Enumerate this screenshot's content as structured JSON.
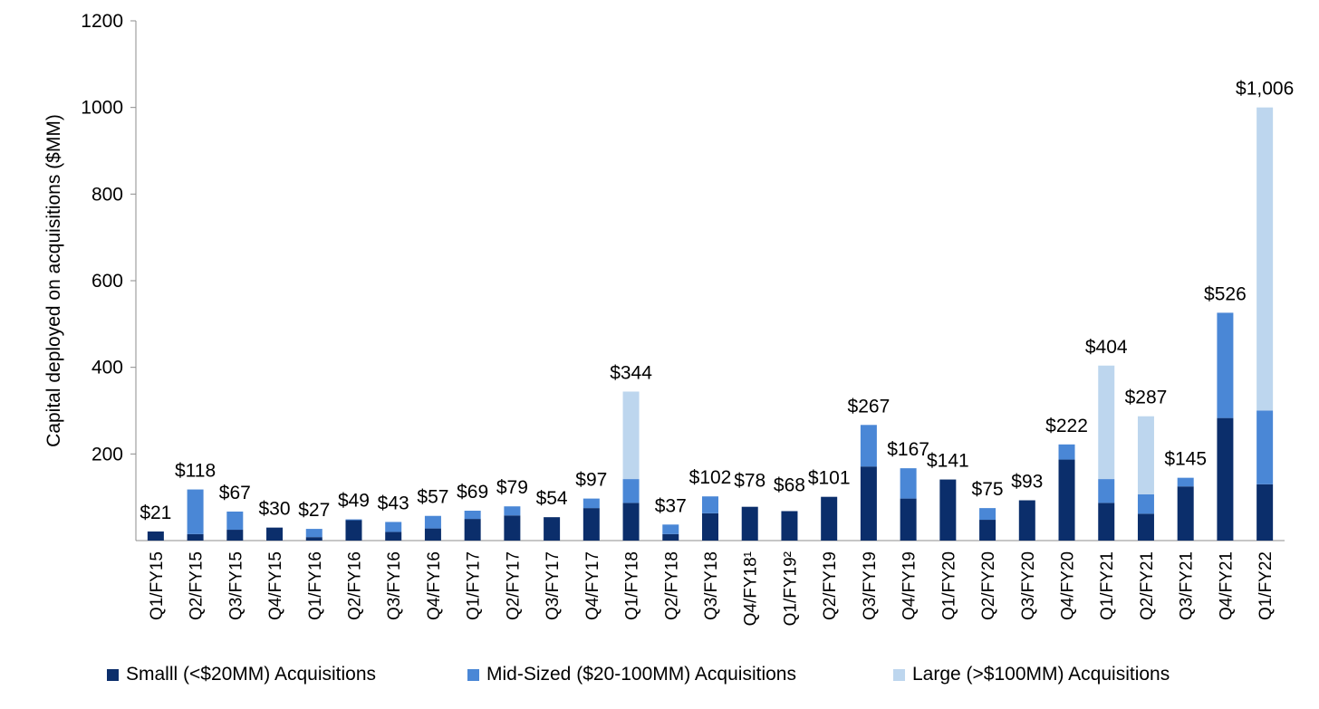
{
  "chart_data": {
    "type": "stacked-bar",
    "ylabel": "Capital deployed on acquisitions ($MM)",
    "ylim": [
      0,
      1200
    ],
    "yticks": [
      200,
      400,
      600,
      800,
      1000,
      1200
    ],
    "legend_position": "bottom",
    "categories": [
      "Q1/FY15",
      "Q2/FY15",
      "Q3/FY15",
      "Q4/FY15",
      "Q1/FY16",
      "Q2/FY16",
      "Q3/FY16",
      "Q4/FY16",
      "Q1/FY17",
      "Q2/FY17",
      "Q3/FY17",
      "Q4/FY17",
      "Q1/FY18",
      "Q2/FY18",
      "Q3/FY18",
      "Q4/FY18¹",
      "Q1/FY19²",
      "Q2/FY19",
      "Q3/FY19",
      "Q4/FY19",
      "Q1/FY20",
      "Q2/FY20",
      "Q3/FY20",
      "Q4/FY20",
      "Q1/FY21",
      "Q2/FY21",
      "Q3/FY21",
      "Q4/FY21",
      "Q1/FY22"
    ],
    "series": [
      {
        "name": "Smalll (<$20MM) Acquisitions",
        "color": "#0b2e6b",
        "values": [
          21,
          15,
          25,
          30,
          8,
          47,
          20,
          28,
          50,
          58,
          54,
          75,
          87,
          15,
          63,
          78,
          68,
          101,
          171,
          97,
          141,
          48,
          93,
          187,
          87,
          62,
          125,
          283,
          130
        ]
      },
      {
        "name": "Mid-Sized ($20-100MM) Acquisitions",
        "color": "#4a87d6",
        "values": [
          0,
          103,
          42,
          0,
          19,
          2,
          23,
          29,
          19,
          21,
          0,
          22,
          55,
          22,
          39,
          0,
          0,
          0,
          96,
          70,
          0,
          27,
          0,
          35,
          55,
          45,
          20,
          243,
          170
        ]
      },
      {
        "name": "Large (>$100MM) Acquisitions",
        "color": "#bdd6ee",
        "values": [
          0,
          0,
          0,
          0,
          0,
          0,
          0,
          0,
          0,
          0,
          0,
          0,
          202,
          0,
          0,
          0,
          0,
          0,
          0,
          0,
          0,
          0,
          0,
          0,
          262,
          180,
          0,
          0,
          700
        ]
      }
    ],
    "totals": [
      "$21",
      "$118",
      "$67",
      "$30",
      "$27",
      "$49",
      "$43",
      "$57",
      "$69",
      "$79",
      "$54",
      "$97",
      "$344",
      "$37",
      "$102",
      "$78",
      "$68",
      "$101",
      "$267",
      "$167",
      "$141",
      "$75",
      "$93",
      "$222",
      "$404",
      "$287",
      "$145",
      "$526",
      "$1,006"
    ]
  }
}
